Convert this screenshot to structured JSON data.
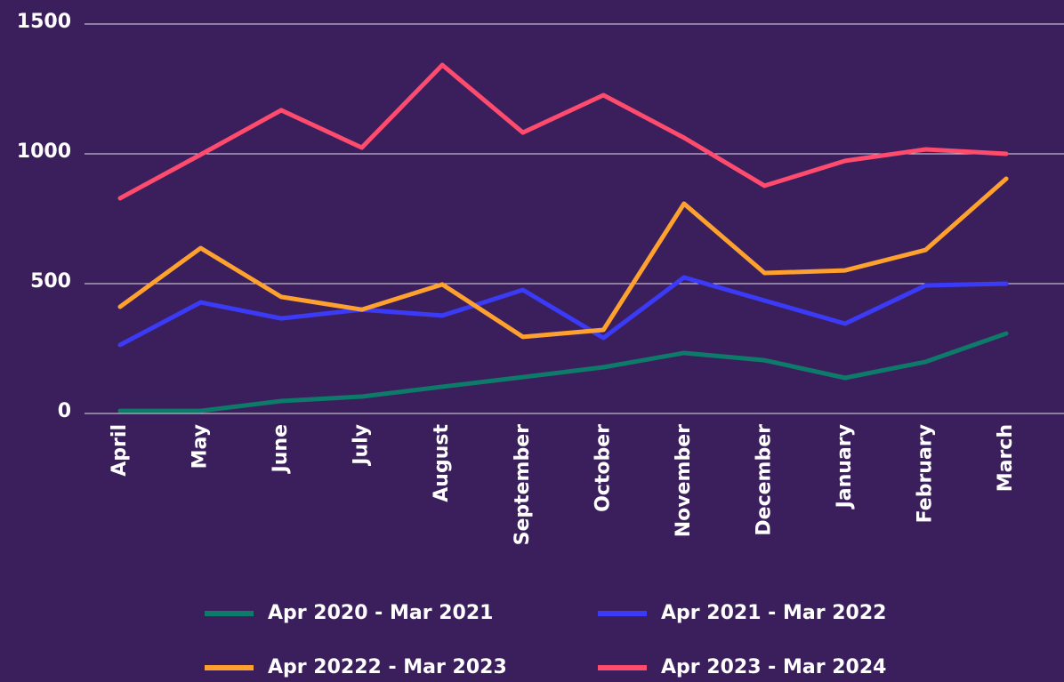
{
  "chart_data": {
    "type": "line",
    "categories": [
      "April",
      "May",
      "June",
      "July",
      "August",
      "September",
      "October",
      "November",
      "December",
      "January",
      "February",
      "March"
    ],
    "series": [
      {
        "name": "Apr 2020 - Mar 2021",
        "color": "#0e7a6a",
        "values": [
          10,
          10,
          48,
          65,
          103,
          140,
          178,
          233,
          205,
          137,
          199,
          308
        ]
      },
      {
        "name": "Apr 2021 - Mar 2022",
        "color": "#3b3bf7",
        "values": [
          264,
          428,
          366,
          400,
          377,
          476,
          291,
          524,
          435,
          346,
          493,
          500
        ]
      },
      {
        "name": "Apr 20222 - Mar 2023",
        "color": "#ffa12e",
        "values": [
          411,
          637,
          449,
          400,
          497,
          295,
          322,
          808,
          541,
          551,
          630,
          904
        ]
      },
      {
        "name": "Apr 2023 - Mar 2024",
        "color": "#ff4b6e",
        "values": [
          829,
          997,
          1168,
          1024,
          1342,
          1082,
          1226,
          1062,
          877,
          973,
          1017,
          1000
        ]
      }
    ],
    "ylim": [
      0,
      1500
    ],
    "yticks": [
      0,
      500,
      1000,
      1500
    ],
    "grid": true,
    "legend": "bottom"
  }
}
